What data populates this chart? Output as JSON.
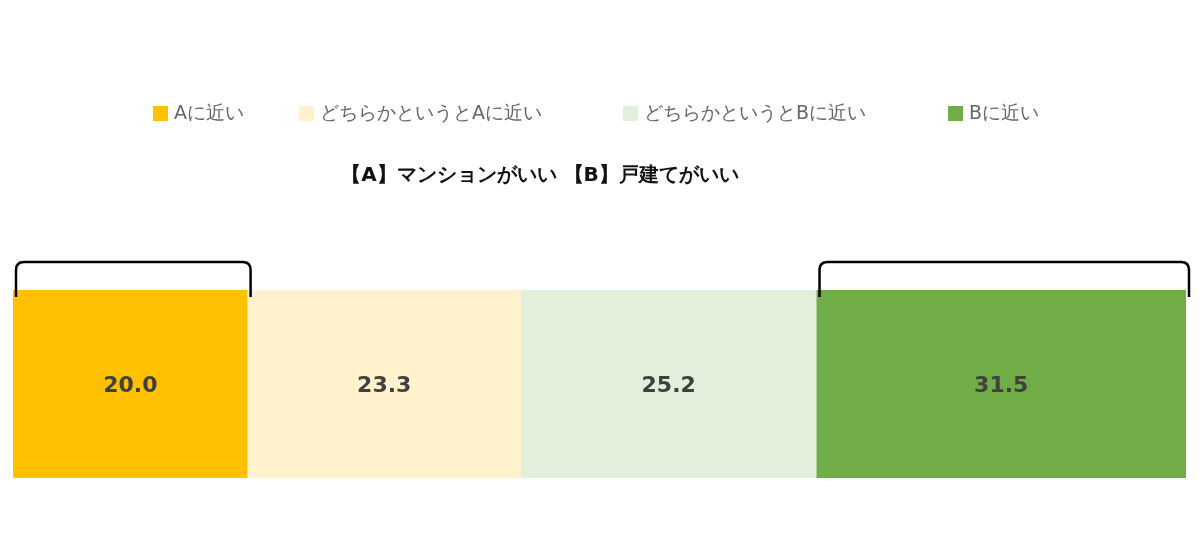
{
  "chart_data": {
    "type": "bar",
    "orientation": "horizontal",
    "stacked": true,
    "title": "【A】マンションがいい 【B】戸建てがいい",
    "categories": [
      null
    ],
    "xlim": [
      0,
      100
    ],
    "legend": "top",
    "series": [
      {
        "name": "Aに近い",
        "color": "#ffc000",
        "values": [
          20.0
        ],
        "value_labels": [
          "20.0"
        ]
      },
      {
        "name": "どちらかというとAに近い",
        "color": "#fff2cc",
        "values": [
          23.3
        ],
        "value_labels": [
          "23.3"
        ]
      },
      {
        "name": "どちらかというとBに近い",
        "color": "#e2efda",
        "values": [
          25.2
        ],
        "value_labels": [
          "25.2"
        ]
      },
      {
        "name": "Bに近い",
        "color": "#70ad47",
        "values": [
          31.5
        ],
        "value_labels": [
          "31.5"
        ]
      }
    ]
  }
}
